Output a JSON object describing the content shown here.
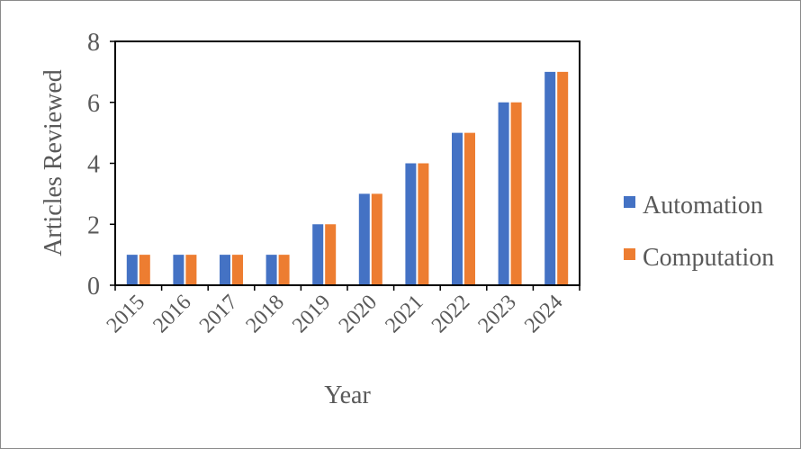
{
  "chart_data": {
    "type": "bar",
    "title": "",
    "xlabel": "Year",
    "ylabel": "Articles Reviewed",
    "ylim": [
      0,
      8
    ],
    "yticks": [
      0,
      2,
      4,
      6,
      8
    ],
    "grid": false,
    "legend_position": "right",
    "categories": [
      "2015",
      "2016",
      "2017",
      "2018",
      "2019",
      "2020",
      "2021",
      "2022",
      "2023",
      "2024"
    ],
    "series": [
      {
        "name": "Automation",
        "color": "#4472C4",
        "values": [
          1,
          1,
          1,
          1,
          2,
          3,
          4,
          5,
          6,
          7
        ]
      },
      {
        "name": "Computation",
        "color": "#ED7D31",
        "values": [
          1,
          1,
          1,
          1,
          2,
          3,
          4,
          5,
          6,
          7
        ]
      }
    ]
  }
}
